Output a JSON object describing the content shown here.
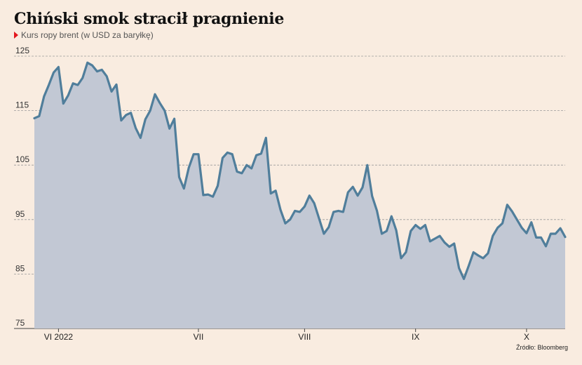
{
  "title": "Chiński smok stracił pragnienie",
  "subtitle": "Kurs ropy brent (w USD za baryłkę)",
  "source": "Źródło: Bloomberg",
  "colors": {
    "background": "#f9ece0",
    "line": "#507e9b",
    "area": "#c2c8d4",
    "marker": "#e3171e",
    "grid": "#9a9a9a"
  },
  "chart_data": {
    "type": "area",
    "title": "Chiński smok stracił pragnienie",
    "subtitle": "Kurs ropy brent (w USD za baryłkę)",
    "ylim": [
      75,
      125
    ],
    "yticks": [
      75,
      85,
      95,
      105,
      115,
      125
    ],
    "grid": true,
    "xlabels": [
      {
        "label": "VI 2022",
        "index": 5
      },
      {
        "label": "VII",
        "index": 34
      },
      {
        "label": "VIII",
        "index": 56
      },
      {
        "label": "IX",
        "index": 79
      },
      {
        "label": "X",
        "index": 102
      }
    ],
    "series": [
      {
        "values": [
          113.6,
          114.0,
          117.6,
          119.7,
          122.0,
          123.0,
          116.3,
          117.8,
          120.0,
          119.7,
          121.0,
          123.8,
          123.3,
          122.2,
          122.5,
          121.3,
          118.5,
          119.8,
          113.2,
          114.2,
          114.6,
          111.8,
          110.0,
          113.4,
          115.0,
          118.0,
          116.4,
          115.0,
          111.7,
          113.5,
          102.8,
          100.7,
          104.5,
          107.0,
          107.0,
          99.5,
          99.6,
          99.2,
          101.2,
          106.3,
          107.3,
          107.0,
          103.8,
          103.5,
          105.0,
          104.4,
          106.8,
          107.1,
          110.0,
          99.8,
          100.3,
          96.8,
          94.3,
          95.0,
          96.6,
          96.4,
          97.4,
          99.4,
          98.0,
          95.2,
          92.4,
          93.6,
          96.4,
          96.6,
          96.4,
          100.0,
          101.0,
          99.4,
          100.9,
          105.0,
          99.3,
          96.6,
          92.4,
          92.9,
          95.6,
          93.0,
          87.9,
          89.0,
          92.9,
          94.0,
          93.3,
          94.0,
          91.0,
          91.5,
          92.0,
          90.8,
          90.0,
          90.6,
          86.1,
          84.1,
          86.5,
          89.0,
          88.4,
          87.9,
          88.8,
          92.0,
          93.5,
          94.3,
          97.7,
          96.5,
          95.0,
          93.5,
          92.5,
          94.5,
          91.7,
          91.7,
          90.1,
          92.4,
          92.4,
          93.4,
          91.8
        ]
      }
    ]
  }
}
